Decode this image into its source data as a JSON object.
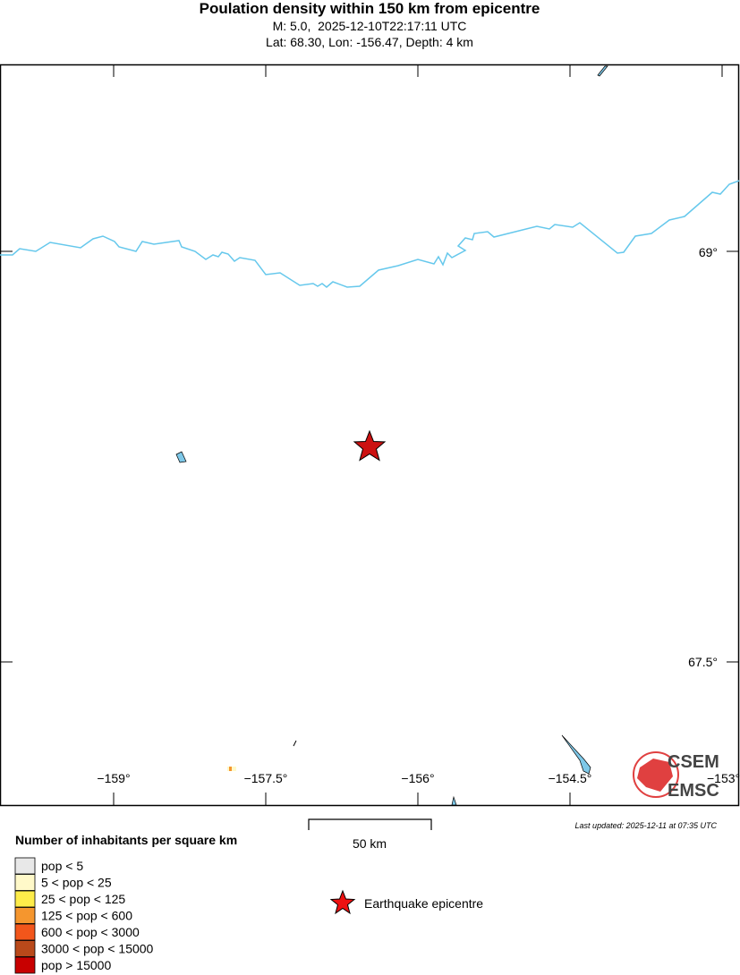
{
  "header": {
    "title": "Poulation density within 150 km from epicentre",
    "line1": "M: 5.0,  2025-12-10T22:17:11 UTC",
    "line2": "Lat: 68.30, Lon: -156.47, Depth: 4 km"
  },
  "map": {
    "lon_labels": [
      "−159°",
      "−157.5°",
      "−156°",
      "−154.5°",
      "−153°"
    ],
    "lat_labels": [
      "69°",
      "67.5°"
    ],
    "scale_label": "50 km",
    "last_updated": "Last updated: 2025-12-11 at 07:35 UTC",
    "logo": [
      "CSEM",
      "EMSC"
    ]
  },
  "legend": {
    "title": "Number of inhabitants per square km",
    "items": [
      {
        "label": "pop < 5",
        "color": "#e8e8e8"
      },
      {
        "label": "5 < pop < 25",
        "color": "#fff9c9"
      },
      {
        "label": "25 < pop < 125",
        "color": "#fdec4a"
      },
      {
        "label": "125 < pop < 600",
        "color": "#f5962e"
      },
      {
        "label": "600 < pop < 3000",
        "color": "#f2561b"
      },
      {
        "label": "3000 < pop < 15000",
        "color": "#b9491a"
      },
      {
        "label": "pop > 15000",
        "color": "#c80000"
      }
    ],
    "epicentre": "Earthquake epicentre"
  }
}
